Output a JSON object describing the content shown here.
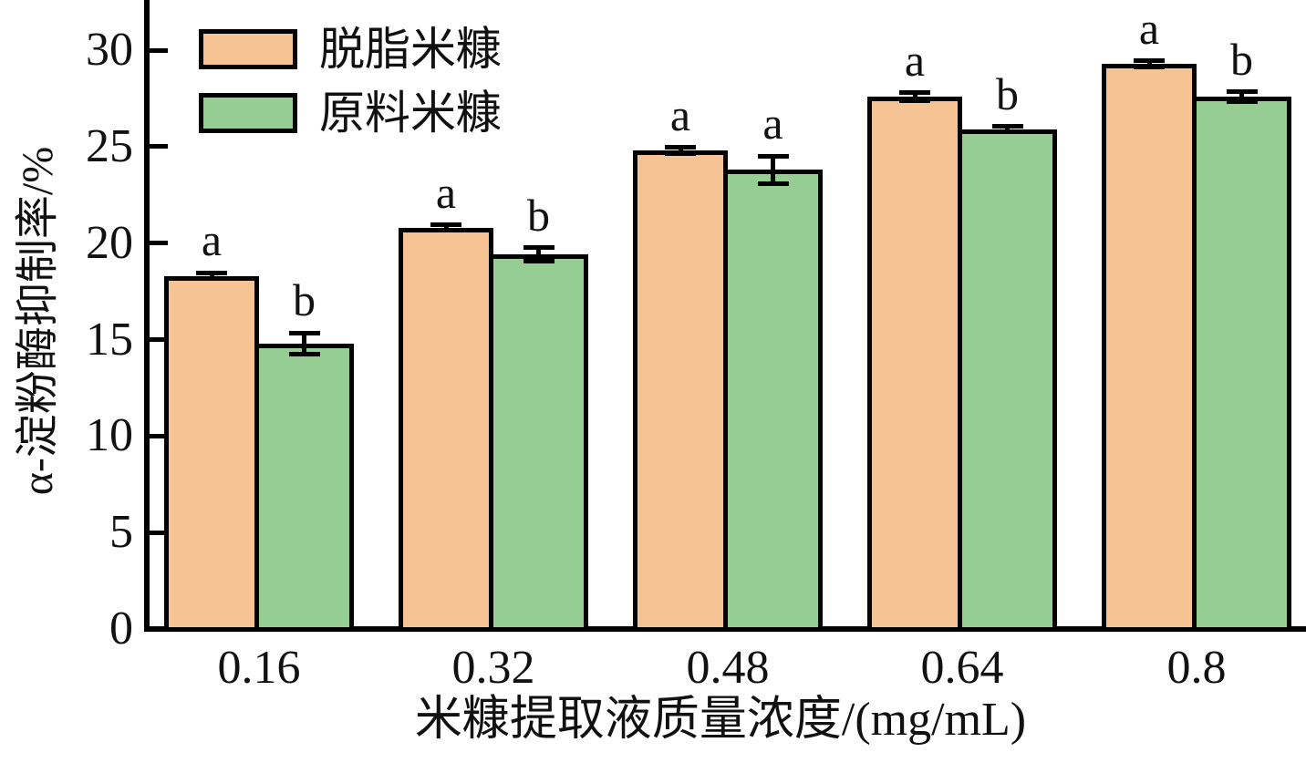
{
  "chart_data": {
    "type": "bar",
    "title": "",
    "xlabel": "米糠提取液质量浓度/(mg/mL)",
    "ylabel": "α-淀粉酶抑制率/%",
    "categories": [
      "0.16",
      "0.32",
      "0.48",
      "0.64",
      "0.8"
    ],
    "series": [
      {
        "name": "脱脂米糠",
        "color": "#F6C494",
        "values": [
          18.3,
          20.8,
          24.8,
          27.6,
          29.3
        ],
        "errors": [
          0.15,
          0.15,
          0.15,
          0.2,
          0.15
        ],
        "sig_letters": [
          "a",
          "a",
          "a",
          "a",
          "a"
        ]
      },
      {
        "name": "原料米糠",
        "color": "#96CD93",
        "values": [
          14.8,
          19.4,
          23.8,
          25.9,
          27.6
        ],
        "errors": [
          0.55,
          0.35,
          0.7,
          0.15,
          0.25
        ],
        "sig_letters": [
          "b",
          "b",
          "a",
          "b",
          "b"
        ]
      }
    ],
    "yticks": [
      0,
      5,
      10,
      15,
      20,
      25,
      30
    ],
    "ylim": [
      0,
      32.6
    ],
    "grid": false,
    "legend_position": "top-left",
    "axis_color": "#000000",
    "background_color": "#ffffff"
  }
}
